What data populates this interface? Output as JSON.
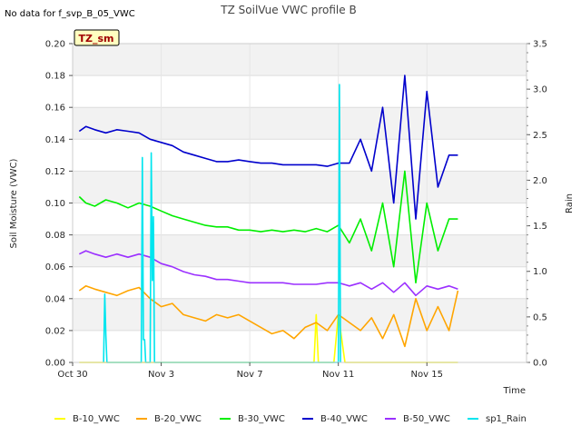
{
  "note": "No data for f_svp_B_05_VWC",
  "chart_data": {
    "type": "line",
    "title": "TZ SoilVue VWC profile B",
    "tag": "TZ_sm",
    "xlabel": "Time",
    "ylabel": "Soil Moisture (VWC)",
    "y2label": "Rain",
    "xlim": [
      0,
      20.5
    ],
    "ylim": [
      0.0,
      0.2
    ],
    "y2lim": [
      0.0,
      3.5
    ],
    "x_ticks": [
      0,
      4,
      8,
      12,
      16
    ],
    "x_tick_labels": [
      "Oct 30",
      "Nov 3",
      "Nov 7",
      "Nov 11",
      "Nov 15"
    ],
    "y_ticks": [
      0.0,
      0.02,
      0.04,
      0.06,
      0.08,
      0.1,
      0.12,
      0.14,
      0.16,
      0.18,
      0.2
    ],
    "y_tick_labels": [
      "0.00",
      "0.02",
      "0.04",
      "0.06",
      "0.08",
      "0.10",
      "0.12",
      "0.14",
      "0.16",
      "0.18",
      "0.20"
    ],
    "y2_ticks": [
      0.0,
      0.5,
      1.0,
      1.5,
      2.0,
      2.5,
      3.0,
      3.5
    ],
    "y2_tick_labels": [
      "0.0",
      "0.5",
      "1.0",
      "1.5",
      "2.0",
      "2.5",
      "3.0",
      "3.5"
    ],
    "grid": true,
    "legend_position": "bottom",
    "series": [
      {
        "name": "B-10_VWC",
        "color": "#ffff00",
        "axis": "left",
        "x": [
          0.3,
          1,
          2,
          3,
          4,
          5,
          6,
          7,
          8,
          9,
          10,
          10.9,
          11.0,
          11.1,
          11.3,
          11.8,
          12.0,
          12.3,
          12.6,
          13.0,
          13.5,
          14.0,
          15.0,
          16.0,
          17.0,
          17.4
        ],
        "y": [
          0.0,
          0.0,
          0.0,
          0.0,
          0.0,
          0.0,
          0.0,
          0.0,
          0.0,
          0.0,
          0.0,
          0.0,
          0.03,
          0.0,
          0.0,
          0.0,
          0.03,
          0.0,
          0.0,
          0.0,
          0.0,
          0.0,
          0.0,
          0.0,
          0.0,
          0.0
        ]
      },
      {
        "name": "B-20_VWC",
        "color": "#ffa500",
        "axis": "left",
        "x": [
          0.3,
          0.6,
          1.0,
          1.5,
          2.0,
          2.5,
          3.0,
          3.5,
          4.0,
          4.5,
          5.0,
          5.5,
          6.0,
          6.5,
          7.0,
          7.5,
          8.0,
          8.5,
          9.0,
          9.5,
          10.0,
          10.5,
          11.0,
          11.5,
          12.0,
          12.5,
          13.0,
          13.5,
          14.0,
          14.5,
          15.0,
          15.5,
          16.0,
          16.5,
          17.0,
          17.4
        ],
        "y": [
          0.045,
          0.048,
          0.046,
          0.044,
          0.042,
          0.045,
          0.047,
          0.04,
          0.035,
          0.037,
          0.03,
          0.028,
          0.026,
          0.03,
          0.028,
          0.03,
          0.026,
          0.022,
          0.018,
          0.02,
          0.015,
          0.022,
          0.025,
          0.02,
          0.03,
          0.025,
          0.02,
          0.028,
          0.015,
          0.03,
          0.01,
          0.04,
          0.02,
          0.035,
          0.02,
          0.045
        ]
      },
      {
        "name": "B-30_VWC",
        "color": "#00ee00",
        "axis": "left",
        "x": [
          0.3,
          0.6,
          1.0,
          1.5,
          2.0,
          2.5,
          3.0,
          3.5,
          4.0,
          4.5,
          5.0,
          5.5,
          6.0,
          6.5,
          7.0,
          7.5,
          8.0,
          8.5,
          9.0,
          9.5,
          10.0,
          10.5,
          11.0,
          11.5,
          12.0,
          12.5,
          13.0,
          13.5,
          14.0,
          14.5,
          15.0,
          15.5,
          16.0,
          16.5,
          17.0,
          17.4
        ],
        "y": [
          0.104,
          0.1,
          0.098,
          0.102,
          0.1,
          0.097,
          0.1,
          0.098,
          0.095,
          0.092,
          0.09,
          0.088,
          0.086,
          0.085,
          0.085,
          0.083,
          0.083,
          0.082,
          0.083,
          0.082,
          0.083,
          0.082,
          0.084,
          0.082,
          0.086,
          0.075,
          0.09,
          0.07,
          0.1,
          0.06,
          0.12,
          0.05,
          0.1,
          0.07,
          0.09,
          0.09
        ]
      },
      {
        "name": "B-40_VWC",
        "color": "#0000cc",
        "axis": "left",
        "x": [
          0.3,
          0.6,
          1.0,
          1.5,
          2.0,
          2.5,
          3.0,
          3.5,
          4.0,
          4.5,
          5.0,
          5.5,
          6.0,
          6.5,
          7.0,
          7.5,
          8.0,
          8.5,
          9.0,
          9.5,
          10.0,
          10.5,
          11.0,
          11.5,
          12.0,
          12.5,
          13.0,
          13.5,
          14.0,
          14.5,
          15.0,
          15.5,
          16.0,
          16.5,
          17.0,
          17.4
        ],
        "y": [
          0.145,
          0.148,
          0.146,
          0.144,
          0.146,
          0.145,
          0.144,
          0.14,
          0.138,
          0.136,
          0.132,
          0.13,
          0.128,
          0.126,
          0.126,
          0.127,
          0.126,
          0.125,
          0.125,
          0.124,
          0.124,
          0.124,
          0.124,
          0.123,
          0.125,
          0.125,
          0.14,
          0.12,
          0.16,
          0.1,
          0.18,
          0.09,
          0.17,
          0.11,
          0.13,
          0.13
        ]
      },
      {
        "name": "B-50_VWC",
        "color": "#9b30ff",
        "axis": "left",
        "x": [
          0.3,
          0.6,
          1.0,
          1.5,
          2.0,
          2.5,
          3.0,
          3.5,
          4.0,
          4.5,
          5.0,
          5.5,
          6.0,
          6.5,
          7.0,
          7.5,
          8.0,
          8.5,
          9.0,
          9.5,
          10.0,
          10.5,
          11.0,
          11.5,
          12.0,
          12.5,
          13.0,
          13.5,
          14.0,
          14.5,
          15.0,
          15.5,
          16.0,
          16.5,
          17.0,
          17.4
        ],
        "y": [
          0.068,
          0.07,
          0.068,
          0.066,
          0.068,
          0.066,
          0.068,
          0.066,
          0.062,
          0.06,
          0.057,
          0.055,
          0.054,
          0.052,
          0.052,
          0.051,
          0.05,
          0.05,
          0.05,
          0.05,
          0.049,
          0.049,
          0.049,
          0.05,
          0.05,
          0.048,
          0.05,
          0.046,
          0.05,
          0.044,
          0.05,
          0.042,
          0.048,
          0.046,
          0.048,
          0.046
        ]
      },
      {
        "name": "sp1_Rain",
        "color": "#00e5ee",
        "axis": "right",
        "x": [
          1.4,
          1.45,
          1.5,
          1.55,
          3.1,
          3.15,
          3.2,
          3.25,
          3.3,
          3.35,
          3.5,
          3.55,
          3.6,
          3.65,
          3.7,
          12.0,
          12.05,
          12.1
        ],
        "y": [
          0.0,
          0.75,
          0.3,
          0.0,
          0.0,
          2.25,
          0.25,
          0.25,
          0.0,
          0.0,
          0.0,
          2.3,
          0.9,
          1.6,
          0.0,
          0.0,
          3.05,
          0.0
        ]
      }
    ]
  }
}
